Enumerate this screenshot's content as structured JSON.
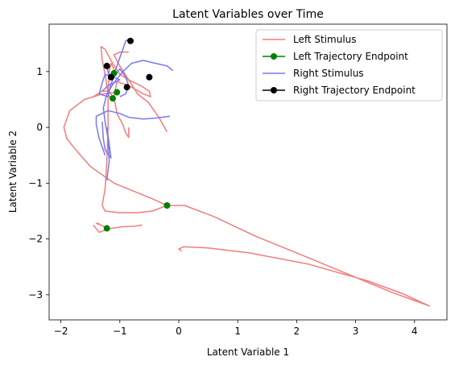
{
  "chart_data": {
    "type": "line",
    "title": "Latent Variables over Time",
    "xlabel": "Latent Variable 1",
    "ylabel": "Latent Variable 2",
    "xlim": [
      -2.2,
      4.55
    ],
    "ylim": [
      -3.45,
      1.85
    ],
    "xticks": [
      -2,
      -1,
      0,
      1,
      2,
      3,
      4
    ],
    "yticks": [
      -3,
      -2,
      -1,
      0,
      1
    ],
    "legend_position": "top-right",
    "colors": {
      "left": "#f47c7c",
      "right": "#7878f0",
      "left_endpoint": "#008000",
      "right_endpoint": "#000000"
    },
    "legend": [
      {
        "label": "Left Stimulus",
        "kind": "line",
        "color_key": "left"
      },
      {
        "label": "Left Trajectory Endpoint",
        "kind": "marker",
        "color_key": "left_endpoint"
      },
      {
        "label": "Right Stimulus",
        "kind": "line",
        "color_key": "right"
      },
      {
        "label": "Right Trajectory Endpoint",
        "kind": "marker",
        "color_key": "right_endpoint"
      }
    ],
    "series": [
      {
        "group": "left",
        "points": [
          [
            0.05,
            -2.22
          ],
          [
            0.0,
            -2.18
          ],
          [
            0.08,
            -2.14
          ],
          [
            0.5,
            -2.16
          ],
          [
            1.2,
            -2.25
          ],
          [
            2.2,
            -2.45
          ],
          [
            3.2,
            -2.75
          ],
          [
            3.8,
            -2.98
          ],
          [
            4.25,
            -3.2
          ],
          [
            3.6,
            -2.95
          ],
          [
            2.8,
            -2.6
          ],
          [
            2.0,
            -2.25
          ],
          [
            1.3,
            -1.95
          ],
          [
            0.6,
            -1.6
          ],
          [
            0.1,
            -1.4
          ],
          [
            -0.2,
            -1.4
          ]
        ]
      },
      {
        "group": "left",
        "points": [
          [
            -0.2,
            -1.4
          ],
          [
            -0.3,
            -1.44
          ],
          [
            -0.45,
            -1.5
          ],
          [
            -0.7,
            -1.53
          ],
          [
            -1.0,
            -1.53
          ],
          [
            -1.25,
            -1.5
          ],
          [
            -1.3,
            -1.4
          ],
          [
            -1.25,
            -1.1
          ],
          [
            -1.22,
            -0.6
          ],
          [
            -1.2,
            0.0
          ],
          [
            -1.2,
            0.6
          ],
          [
            -1.18,
            1.0
          ],
          [
            -1.15,
            1.15
          ],
          [
            -1.1,
            1.05
          ],
          [
            -1.1,
            0.95
          ]
        ]
      },
      {
        "group": "left",
        "points": [
          [
            -0.2,
            -1.4
          ],
          [
            -0.45,
            -1.28
          ],
          [
            -0.75,
            -1.15
          ],
          [
            -1.1,
            -1.0
          ],
          [
            -1.5,
            -0.7
          ],
          [
            -1.75,
            -0.4
          ],
          [
            -1.9,
            -0.2
          ],
          [
            -1.95,
            0.0
          ],
          [
            -1.85,
            0.3
          ],
          [
            -1.6,
            0.5
          ],
          [
            -1.3,
            0.6
          ],
          [
            -1.1,
            0.62
          ],
          [
            -1.05,
            0.63
          ]
        ]
      },
      {
        "group": "left",
        "points": [
          [
            -0.85,
            1.35
          ],
          [
            -1.0,
            1.35
          ],
          [
            -1.1,
            1.3
          ],
          [
            -1.0,
            1.1
          ],
          [
            -0.85,
            0.85
          ],
          [
            -0.7,
            0.6
          ],
          [
            -0.52,
            0.45
          ],
          [
            -0.35,
            0.2
          ],
          [
            -0.2,
            -0.08
          ]
        ]
      },
      {
        "group": "left",
        "points": [
          [
            -1.15,
            0.5
          ],
          [
            -1.2,
            0.6
          ],
          [
            -1.25,
            0.95
          ],
          [
            -1.3,
            1.2
          ],
          [
            -1.32,
            1.45
          ],
          [
            -1.25,
            1.4
          ],
          [
            -1.15,
            1.2
          ],
          [
            -1.0,
            0.95
          ],
          [
            -0.85,
            0.85
          ],
          [
            -0.65,
            0.75
          ],
          [
            -0.5,
            0.65
          ],
          [
            -0.48,
            0.55
          ],
          [
            -0.6,
            0.6
          ],
          [
            -0.85,
            0.75
          ],
          [
            -1.05,
            0.82
          ],
          [
            -1.1,
            0.55
          ],
          [
            -1.05,
            0.25
          ],
          [
            -0.95,
            0.05
          ],
          [
            -0.9,
            -0.1
          ],
          [
            -0.85,
            -0.18
          ],
          [
            -0.85,
            0.0
          ]
        ]
      },
      {
        "group": "left",
        "points": [
          [
            -1.45,
            0.55
          ],
          [
            -1.3,
            0.65
          ],
          [
            -1.18,
            0.65
          ],
          [
            -1.1,
            0.52
          ]
        ]
      },
      {
        "group": "left",
        "points": [
          [
            -1.45,
            -1.75
          ],
          [
            -1.35,
            -1.88
          ],
          [
            -1.2,
            -1.82
          ],
          [
            -0.95,
            -1.78
          ],
          [
            -0.75,
            -1.77
          ],
          [
            -0.62,
            -1.75
          ]
        ]
      },
      {
        "group": "left",
        "points": [
          [
            -1.22,
            -1.81
          ],
          [
            -1.3,
            -1.76
          ],
          [
            -1.4,
            -1.72
          ],
          [
            -1.35,
            -1.72
          ]
        ]
      },
      {
        "group": "right",
        "points": [
          [
            -1.22,
            -0.95
          ],
          [
            -1.18,
            -0.6
          ],
          [
            -1.2,
            -0.2
          ],
          [
            -1.25,
            0.1
          ],
          [
            -1.28,
            0.35
          ],
          [
            -1.22,
            0.6
          ],
          [
            -1.1,
            0.8
          ],
          [
            -0.95,
            1.0
          ],
          [
            -0.8,
            1.15
          ],
          [
            -0.6,
            1.2
          ],
          [
            -0.4,
            1.15
          ],
          [
            -0.2,
            1.1
          ],
          [
            -0.1,
            1.02
          ]
        ]
      },
      {
        "group": "right",
        "points": [
          [
            -1.25,
            -0.5
          ],
          [
            -1.35,
            -0.2
          ],
          [
            -1.4,
            0.05
          ],
          [
            -1.4,
            0.2
          ],
          [
            -1.2,
            0.3
          ],
          [
            -1.0,
            0.25
          ],
          [
            -0.85,
            0.18
          ],
          [
            -0.6,
            0.15
          ],
          [
            -0.35,
            0.17
          ],
          [
            -0.15,
            0.2
          ]
        ]
      },
      {
        "group": "right",
        "points": [
          [
            -1.2,
            0.55
          ],
          [
            -1.35,
            0.6
          ],
          [
            -1.3,
            0.8
          ],
          [
            -1.25,
            0.95
          ],
          [
            -1.1,
            0.9
          ],
          [
            -1.0,
            0.85
          ],
          [
            -1.2,
            0.75
          ],
          [
            -1.3,
            0.65
          ]
        ]
      },
      {
        "group": "right",
        "points": [
          [
            -1.1,
            0.95
          ],
          [
            -1.05,
            1.1
          ],
          [
            -1.0,
            1.25
          ],
          [
            -0.95,
            1.4
          ],
          [
            -0.9,
            1.55
          ],
          [
            -0.85,
            1.58
          ],
          [
            -0.82,
            1.55
          ]
        ]
      },
      {
        "group": "right",
        "points": [
          [
            -1.3,
            0.1
          ],
          [
            -1.28,
            -0.2
          ],
          [
            -1.25,
            -0.4
          ],
          [
            -1.15,
            -0.55
          ],
          [
            -1.18,
            -0.3
          ],
          [
            -1.22,
            0.0
          ]
        ]
      },
      {
        "group": "right",
        "points": [
          [
            -1.22,
            1.1
          ],
          [
            -1.2,
            1.0
          ],
          [
            -1.18,
            0.9
          ]
        ]
      },
      {
        "group": "right",
        "points": [
          [
            -1.2,
            0.55
          ],
          [
            -1.15,
            0.78
          ],
          [
            -1.1,
            0.9
          ],
          [
            -1.0,
            1.05
          ],
          [
            -0.9,
            0.9
          ],
          [
            -0.85,
            0.75
          ],
          [
            -0.9,
            0.6
          ],
          [
            -1.0,
            0.55
          ]
        ]
      }
    ],
    "endpoints": {
      "left": [
        [
          -0.2,
          -1.4
        ],
        [
          -1.22,
          -1.81
        ],
        [
          -1.1,
          0.97
        ],
        [
          -1.05,
          0.63
        ],
        [
          -1.12,
          0.52
        ]
      ],
      "right": [
        [
          -0.82,
          1.55
        ],
        [
          -1.22,
          1.1
        ],
        [
          -0.5,
          0.9
        ],
        [
          -1.15,
          0.9
        ],
        [
          -0.88,
          0.72
        ]
      ]
    }
  }
}
